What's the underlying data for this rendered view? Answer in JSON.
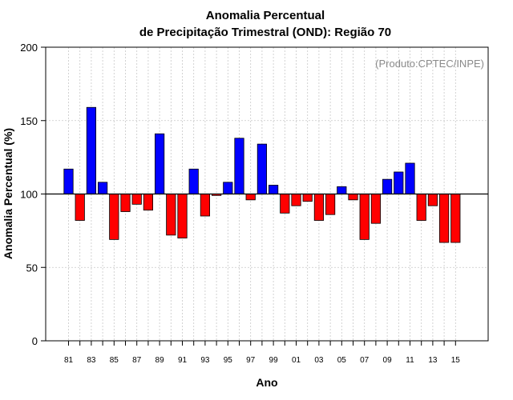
{
  "chart_data": {
    "type": "bar",
    "title_line1": "Anomalia Percentual",
    "title_line2": "de Precipitação Trimestral (OND): Região 70",
    "xlabel": "Ano",
    "ylabel": "Anomalia Percentual (%)",
    "credit": "(Produto:CPTEC/INPE)",
    "ylim": [
      0,
      200
    ],
    "yticks": [
      0,
      50,
      100,
      150,
      200
    ],
    "reference_line": 100,
    "grid": true,
    "colors": {
      "above": "#0000ff",
      "below": "#ff0000",
      "edge": "#000000",
      "grid": "#c8c8c8"
    },
    "categories": [
      "81",
      "82",
      "83",
      "84",
      "85",
      "86",
      "87",
      "88",
      "89",
      "90",
      "91",
      "92",
      "93",
      "94",
      "95",
      "96",
      "97",
      "98",
      "99",
      "00",
      "01",
      "02",
      "03",
      "04",
      "05",
      "06",
      "07",
      "08",
      "09",
      "10",
      "11",
      "12",
      "13",
      "14",
      "15"
    ],
    "xtick_labels": [
      "81",
      "83",
      "85",
      "87",
      "89",
      "91",
      "93",
      "95",
      "97",
      "99",
      "01",
      "03",
      "05",
      "07",
      "09",
      "11",
      "13",
      "15"
    ],
    "values": [
      117,
      82,
      159,
      108,
      69,
      88,
      93,
      89,
      141,
      72,
      70,
      117,
      85,
      99,
      108,
      138,
      96,
      134,
      106,
      87,
      92,
      95,
      82,
      86,
      105,
      96,
      69,
      80,
      110,
      115,
      121,
      82,
      92,
      67,
      67
    ]
  }
}
